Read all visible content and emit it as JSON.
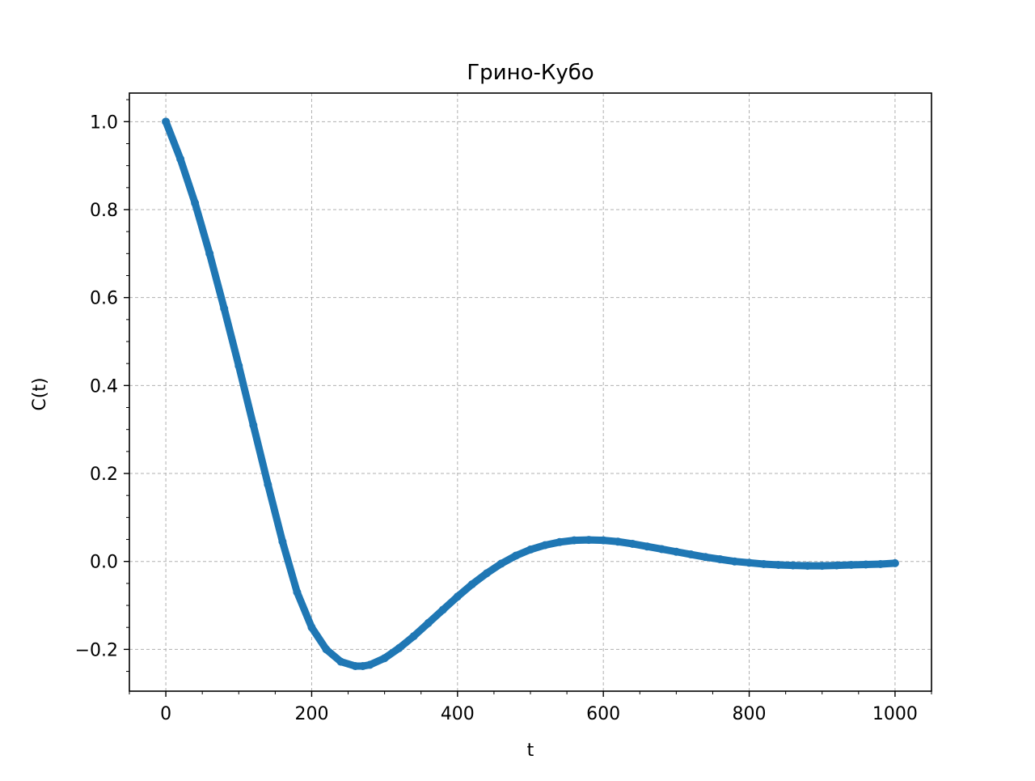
{
  "chart_data": {
    "type": "line",
    "title": "Грино-Кубо",
    "xlabel": "t",
    "ylabel": "C(t)",
    "xlim": [
      -50,
      1050
    ],
    "ylim": [
      -0.295,
      1.065
    ],
    "xticks": [
      0,
      200,
      400,
      600,
      800,
      1000
    ],
    "xtick_labels": [
      "0",
      "200",
      "400",
      "600",
      "800",
      "1000"
    ],
    "yticks": [
      -0.2,
      0.0,
      0.2,
      0.4,
      0.6,
      0.8,
      1.0
    ],
    "ytick_labels": [
      "−0.2",
      "0.0",
      "0.2",
      "0.4",
      "0.6",
      "0.8",
      "1.0"
    ],
    "grid": true,
    "series": [
      {
        "name": "C(t)",
        "color": "#1f77b4",
        "x": [
          0,
          20,
          40,
          60,
          80,
          100,
          120,
          140,
          160,
          180,
          200,
          220,
          240,
          260,
          270,
          280,
          300,
          320,
          340,
          360,
          380,
          400,
          420,
          440,
          460,
          480,
          500,
          520,
          540,
          560,
          580,
          600,
          620,
          640,
          660,
          680,
          700,
          720,
          740,
          760,
          780,
          800,
          820,
          840,
          860,
          880,
          900,
          920,
          940,
          960,
          980,
          1000
        ],
        "y": [
          1.0,
          0.915,
          0.815,
          0.7,
          0.575,
          0.445,
          0.31,
          0.175,
          0.045,
          -0.07,
          -0.15,
          -0.2,
          -0.228,
          -0.238,
          -0.238,
          -0.235,
          -0.22,
          -0.197,
          -0.17,
          -0.14,
          -0.11,
          -0.08,
          -0.052,
          -0.027,
          -0.005,
          0.013,
          0.027,
          0.037,
          0.044,
          0.048,
          0.049,
          0.048,
          0.045,
          0.04,
          0.034,
          0.028,
          0.022,
          0.016,
          0.01,
          0.005,
          0.0,
          -0.003,
          -0.006,
          -0.008,
          -0.009,
          -0.01,
          -0.01,
          -0.009,
          -0.008,
          -0.007,
          -0.006,
          -0.004
        ]
      }
    ]
  }
}
